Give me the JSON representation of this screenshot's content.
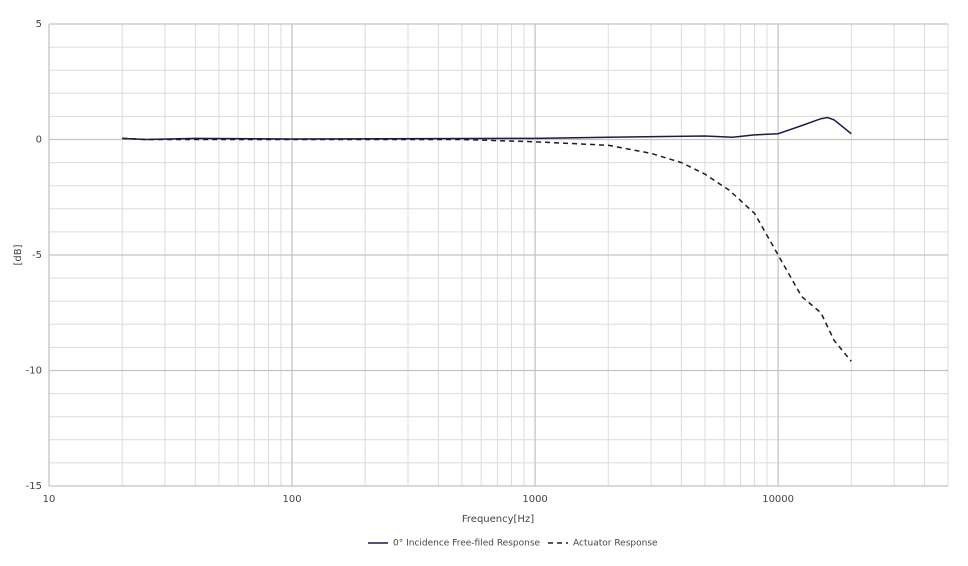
{
  "chart_data": {
    "type": "line",
    "x_label": "Frequency[Hz]",
    "y_label": "[dB]",
    "log_x": true,
    "grid": true,
    "legend": "bottom",
    "xlim": [
      10,
      50000
    ],
    "xticks": [
      10,
      100,
      1000,
      10000
    ],
    "ylim": [
      -15,
      5
    ],
    "yticks": [
      -15,
      -10,
      -5,
      0,
      5
    ],
    "series": [
      {
        "name": "0° Incidence Free-filed Response",
        "color": "#1c1c4c",
        "line_style": "solid",
        "x": [
          20,
          25,
          40,
          100,
          1000,
          2000,
          5000,
          6500,
          8000,
          10000,
          12500,
          15000,
          16000,
          17000,
          20000
        ],
        "values": [
          0.05,
          0,
          0.05,
          0.02,
          0.05,
          0.1,
          0.15,
          0.1,
          0.2,
          0.25,
          0.6,
          0.9,
          0.95,
          0.85,
          0.25
        ]
      },
      {
        "name": "Actuator Response",
        "color": "#1a1a2a",
        "line_style": "dashed",
        "x": [
          20,
          25,
          100,
          500,
          1000,
          2000,
          3000,
          4000,
          5000,
          6300,
          8000,
          10000,
          12500,
          15000,
          17000,
          20000
        ],
        "values": [
          0.05,
          0,
          0,
          0,
          -0.1,
          -0.25,
          -0.6,
          -1.0,
          -1.5,
          -2.2,
          -3.2,
          -5.0,
          -6.8,
          -7.5,
          -8.7,
          -9.6
        ]
      }
    ]
  }
}
